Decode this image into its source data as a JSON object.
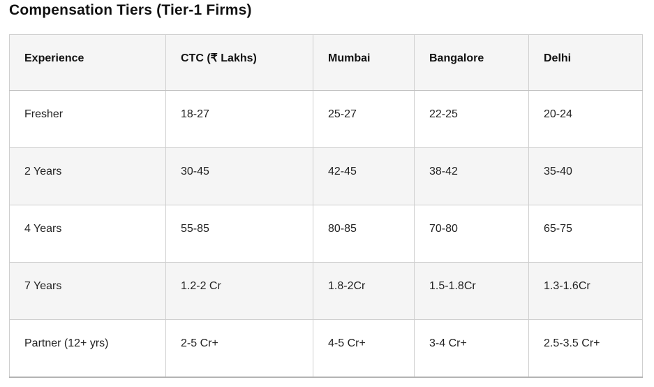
{
  "page": {
    "title": "Compensation Tiers (Tier-1 Firms)"
  },
  "chart_data": {
    "type": "table",
    "title": "Compensation Tiers (Tier-1 Firms)",
    "columns": [
      "Experience",
      "CTC (₹ Lakhs)",
      "Mumbai",
      "Bangalore",
      "Delhi"
    ],
    "rows": [
      [
        "Fresher",
        "18-27",
        "25-27",
        "22-25",
        "20-24"
      ],
      [
        "2 Years",
        "30-45",
        "42-45",
        "38-42",
        "35-40"
      ],
      [
        "4 Years",
        "55-85",
        "80-85",
        "70-80",
        "65-75"
      ],
      [
        "7 Years",
        "1.2-2 Cr",
        "1.8-2Cr",
        "1.5-1.8Cr",
        "1.3-1.6Cr"
      ],
      [
        "Partner (12+ yrs)",
        "2-5 Cr+",
        "4-5 Cr+",
        "3-4 Cr+",
        "2.5-3.5 Cr+"
      ]
    ],
    "layout_hints": {
      "striped_rows": true,
      "stripe_pattern": "even rows gray",
      "header_background": "#f5f5f5",
      "stripe_background": "#f5f5f5",
      "row_background": "#ffffff",
      "border_color": "#cfcfcf",
      "bottom_border_color": "#b3b3b3",
      "text_color": "#1a1a1a"
    }
  }
}
